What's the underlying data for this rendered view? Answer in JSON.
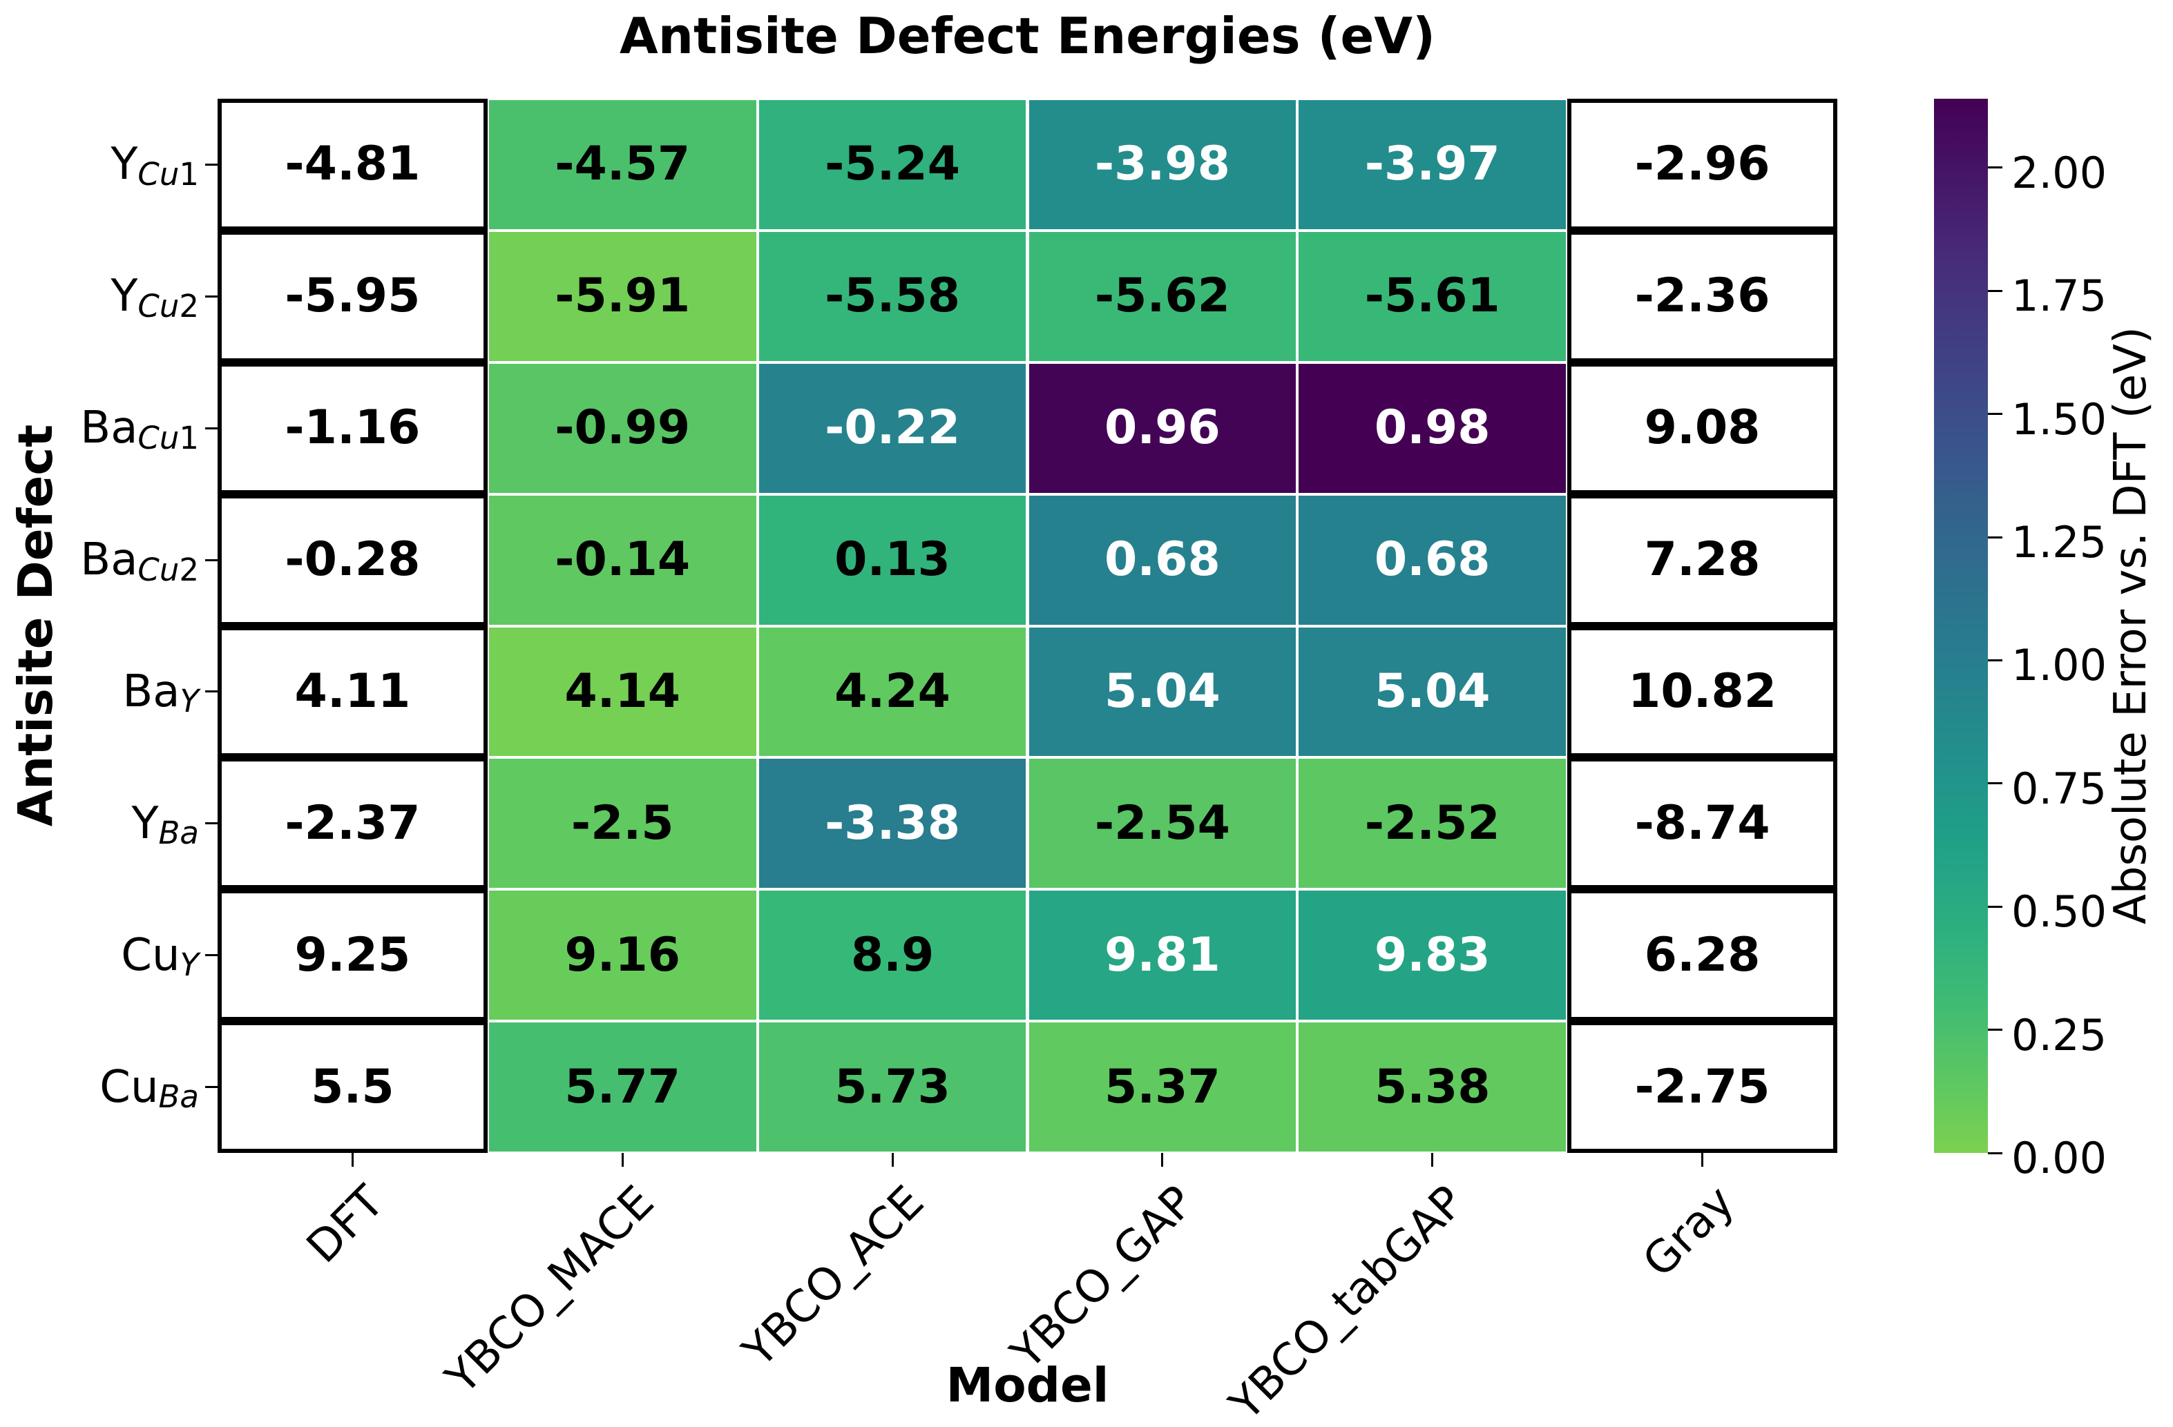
{
  "title": "Antisite Defect Energies (eV)",
  "x_axis": {
    "label": "Model"
  },
  "y_axis": {
    "label": "Antisite Defect"
  },
  "colorbar": {
    "label": "Absolute Error vs. DFT (eV)",
    "tick_labels": [
      "0.00",
      "0.25",
      "0.50",
      "0.75",
      "1.00",
      "1.25",
      "1.50",
      "1.75",
      "2.00"
    ],
    "tick_values": [
      0.0,
      0.25,
      0.5,
      0.75,
      1.0,
      1.25,
      1.5,
      1.75,
      2.0
    ],
    "range": [
      0,
      2.14
    ]
  },
  "colors": {
    "viridis_anchors": [
      "#440154",
      "#482878",
      "#3e4989",
      "#31688e",
      "#26828e",
      "#1f9e89",
      "#35b779",
      "#6ece58",
      "#b5de2b",
      "#fde725"
    ],
    "cell_text_dark": "#000000",
    "cell_text_light": "#ffffff",
    "box_border": "#000000",
    "background": "#ffffff"
  },
  "chart_data": {
    "type": "heatmap",
    "title": "Antisite Defect Energies (eV)",
    "xlabel": "Model",
    "ylabel": "Antisite Defect",
    "columns": [
      "DFT",
      "YBCO_MACE",
      "YBCO_ACE",
      "YBCO_GAP",
      "YBCO_tabGAP",
      "Gray"
    ],
    "reference_column": "DFT",
    "uncolored_column_indices": [
      0,
      5
    ],
    "color_scale": {
      "label": "Absolute Error vs. DFT (eV)",
      "min": 0,
      "max": 2.14,
      "colormap": "viridis-reversed-truncated"
    },
    "rows": [
      {
        "label_base": "Y",
        "label_sub": "Cu1",
        "display": [
          "-4.81",
          "-4.57",
          "-5.24",
          "-3.98",
          "-3.97",
          "-2.96"
        ]
      },
      {
        "label_base": "Y",
        "label_sub": "Cu2",
        "display": [
          "-5.95",
          "-5.91",
          "-5.58",
          "-5.62",
          "-5.61",
          "-2.36"
        ]
      },
      {
        "label_base": "Ba",
        "label_sub": "Cu1",
        "display": [
          "-1.16",
          "-0.99",
          "-0.22",
          "0.96",
          "0.98",
          "9.08"
        ]
      },
      {
        "label_base": "Ba",
        "label_sub": "Cu2",
        "display": [
          "-0.28",
          "-0.14",
          "0.13",
          "0.68",
          "0.68",
          "7.28"
        ]
      },
      {
        "label_base": "Ba",
        "label_sub": "Y",
        "display": [
          "4.11",
          "4.14",
          "4.24",
          "5.04",
          "5.04",
          "10.82"
        ]
      },
      {
        "label_base": "Y",
        "label_sub": "Ba",
        "display": [
          "-2.37",
          "-2.5",
          "-3.38",
          "-2.54",
          "-2.52",
          "-8.74"
        ]
      },
      {
        "label_base": "Cu",
        "label_sub": "Y",
        "display": [
          "9.25",
          "9.16",
          "8.9",
          "9.81",
          "9.83",
          "6.28"
        ]
      },
      {
        "label_base": "Cu",
        "label_sub": "Ba",
        "display": [
          "5.5",
          "5.77",
          "5.73",
          "5.37",
          "5.38",
          "-2.75"
        ]
      }
    ]
  }
}
